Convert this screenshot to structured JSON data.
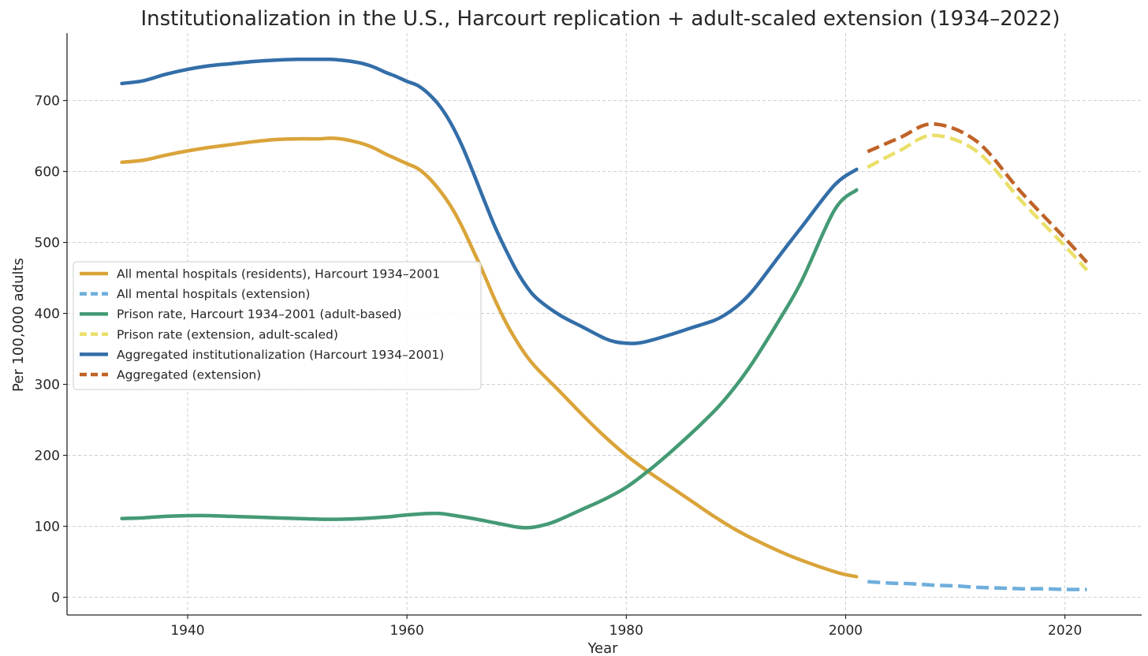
{
  "chart_data": {
    "type": "line",
    "title": "Institutionalization in the U.S., Harcourt replication + adult-scaled extension (1934–2022)",
    "xlabel": "Year",
    "ylabel": "Per 100,000 adults",
    "xlim": [
      1929,
      2027
    ],
    "ylim": [
      -25,
      795
    ],
    "xticks": [
      1940,
      1960,
      1980,
      2000,
      2020
    ],
    "yticks": [
      0,
      100,
      200,
      300,
      400,
      500,
      600,
      700
    ],
    "grid": true,
    "legend_position": "center-left",
    "series": [
      {
        "name": "All mental hospitals (residents), Harcourt 1934–2001",
        "color": "#DAA43A",
        "style": "solid",
        "x": [
          1934,
          1936,
          1938,
          1940,
          1942,
          1944,
          1946,
          1948,
          1950,
          1952,
          1953,
          1954,
          1955,
          1956,
          1957,
          1958,
          1959,
          1960,
          1961,
          1962,
          1963,
          1964,
          1965,
          1966,
          1967,
          1968,
          1969,
          1970,
          1971,
          1972,
          1974,
          1976,
          1978,
          1980,
          1982,
          1984,
          1986,
          1988,
          1990,
          1992,
          1995,
          1999,
          2001
        ],
        "y": [
          613,
          616,
          623,
          629,
          634,
          638,
          642,
          645,
          646,
          646,
          647,
          646,
          643,
          639,
          633,
          625,
          618,
          611,
          604,
          591,
          573,
          551,
          523,
          490,
          456,
          420,
          388,
          361,
          338,
          320,
          289,
          257,
          227,
          200,
          177,
          156,
          135,
          114,
          95,
          79,
          58,
          36,
          29
        ]
      },
      {
        "name": "All mental hospitals (extension)",
        "color": "#6FAEDC",
        "style": "dashed",
        "x": [
          2002,
          2004,
          2006,
          2008,
          2010,
          2012,
          2014,
          2016,
          2018,
          2020,
          2022
        ],
        "y": [
          22,
          20,
          19,
          17,
          16,
          14,
          13,
          12,
          12,
          11,
          11
        ]
      },
      {
        "name": "Prison rate, Harcourt 1934–2001 (adult-based)",
        "color": "#449A74",
        "style": "solid",
        "x": [
          1934,
          1936,
          1938,
          1940,
          1942,
          1944,
          1946,
          1948,
          1950,
          1952,
          1954,
          1956,
          1958,
          1960,
          1962,
          1963,
          1964,
          1966,
          1968,
          1970,
          1971,
          1972,
          1973,
          1974,
          1976,
          1978,
          1980,
          1982,
          1984,
          1986,
          1988,
          1989,
          1990,
          1991,
          1992,
          1994,
          1996,
          1999,
          2001
        ],
        "y": [
          111,
          112,
          114,
          115,
          115,
          114,
          113,
          112,
          111,
          110,
          110,
          111,
          113,
          116,
          118,
          118,
          116,
          111,
          105,
          99,
          98,
          100,
          104,
          110,
          124,
          138,
          155,
          178,
          204,
          232,
          262,
          279,
          298,
          319,
          342,
          392,
          446,
          546,
          574
        ]
      },
      {
        "name": "Prison rate (extension, adult-scaled)",
        "color": "#EADF6A",
        "style": "dashed",
        "x": [
          2002,
          2005,
          2008,
          2012,
          2016,
          2020,
          2022
        ],
        "y": [
          606,
          630,
          651,
          628,
          559,
          495,
          461
        ]
      },
      {
        "name": "Aggregated institutionalization (Harcourt 1934–2001)",
        "color": "#336EA8",
        "style": "solid",
        "x": [
          1934,
          1936,
          1938,
          1940,
          1942,
          1944,
          1946,
          1948,
          1950,
          1952,
          1953,
          1954,
          1955,
          1956,
          1957,
          1958,
          1959,
          1960,
          1961,
          1962,
          1963,
          1964,
          1965,
          1966,
          1967,
          1968,
          1969,
          1970,
          1971,
          1972,
          1974,
          1976,
          1978,
          1979,
          1980,
          1981,
          1982,
          1984,
          1986,
          1988,
          1989,
          1990,
          1991,
          1992,
          1994,
          1996,
          1999,
          2001
        ],
        "y": [
          724,
          728,
          737,
          744,
          749,
          752,
          755,
          757,
          758,
          758,
          758,
          757,
          755,
          752,
          747,
          740,
          734,
          727,
          721,
          709,
          692,
          668,
          637,
          600,
          561,
          523,
          490,
          460,
          436,
          419,
          397,
          381,
          365,
          360,
          358,
          358,
          361,
          370,
          380,
          390,
          398,
          409,
          423,
          441,
          482,
          522,
          581,
          603
        ]
      },
      {
        "name": "Aggregated (extension)",
        "color": "#BF6328",
        "style": "dashed",
        "x": [
          2002,
          2005,
          2008,
          2012,
          2016,
          2020,
          2022
        ],
        "y": [
          628,
          648,
          667,
          642,
          571,
          506,
          472
        ]
      }
    ]
  }
}
